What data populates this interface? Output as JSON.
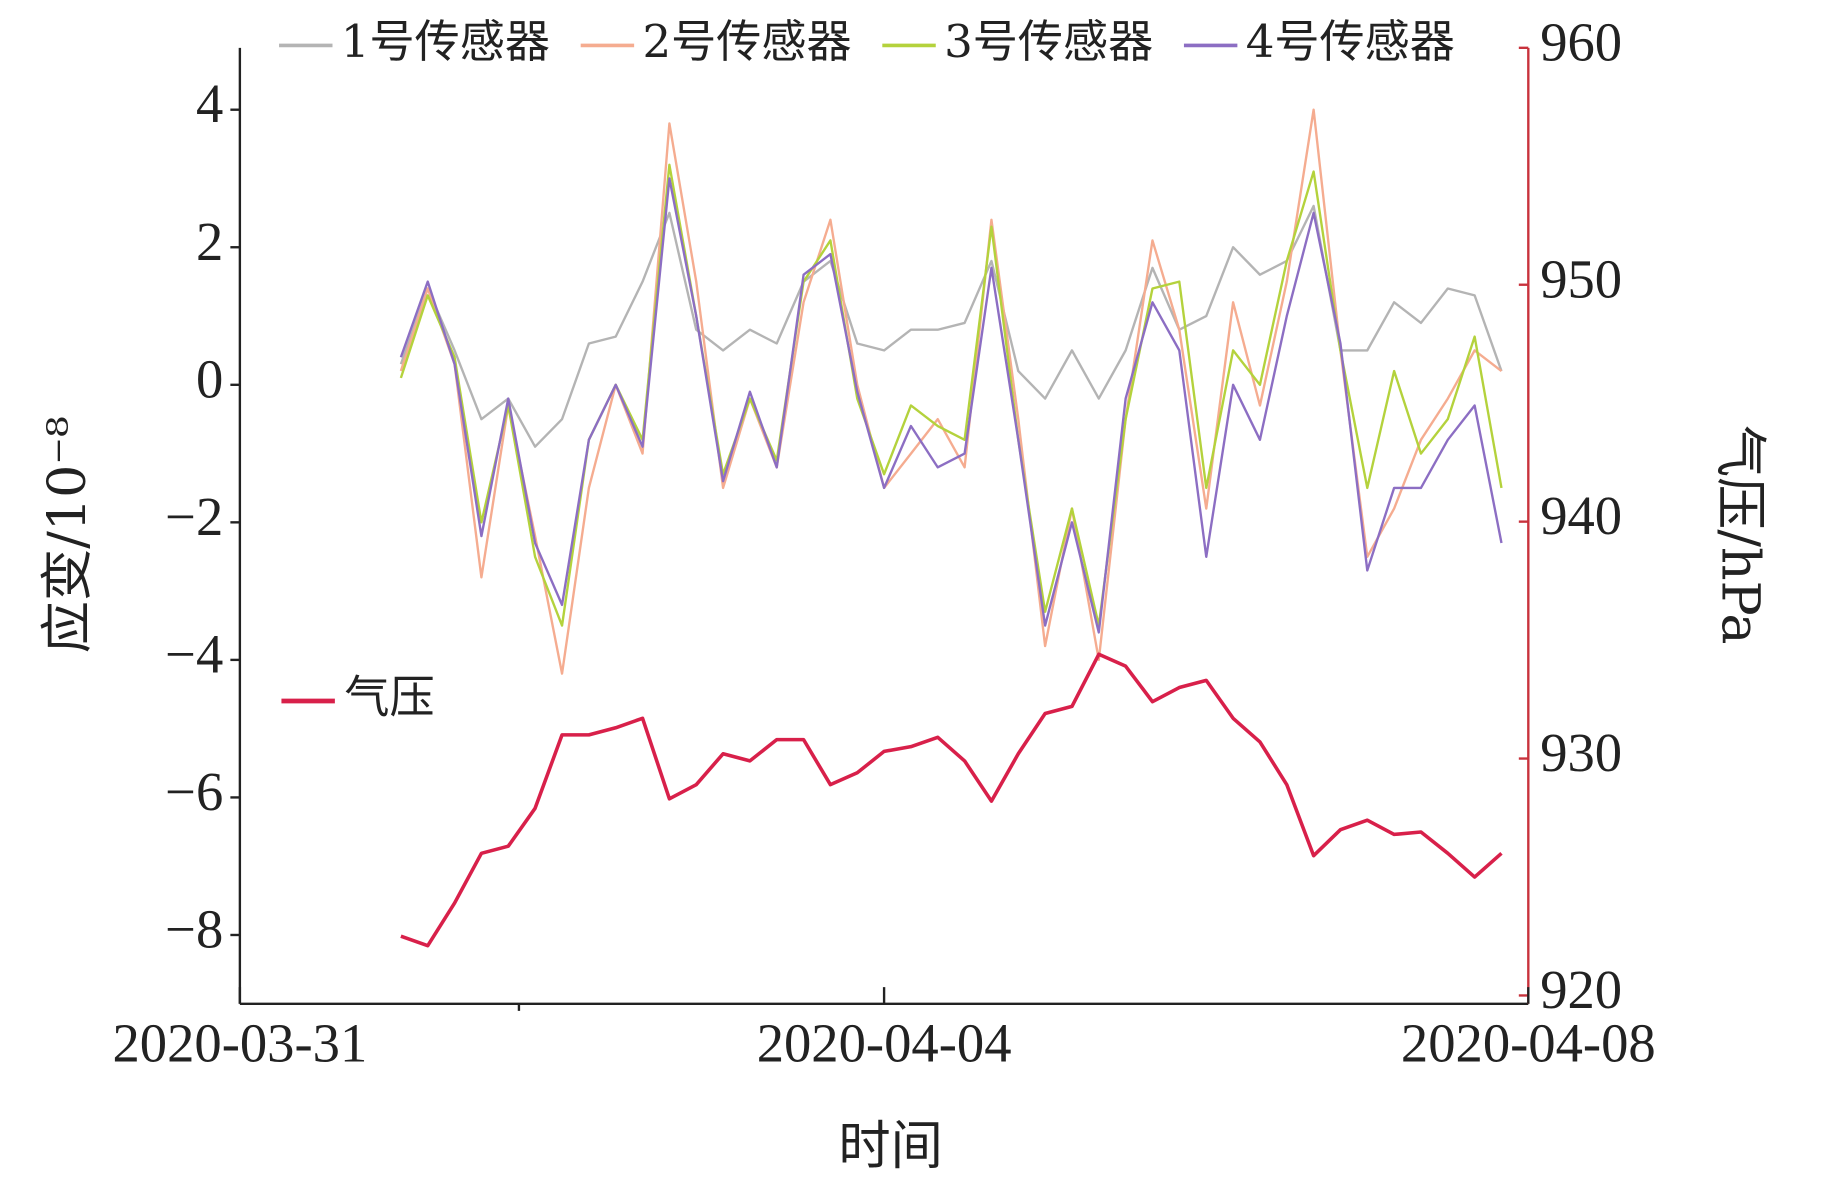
{
  "chart_data": {
    "type": "line",
    "x_label": "时间",
    "y_label": "应变/10⁻⁸",
    "y2_label": "气压/hPa",
    "x": [
      "2020-04-01T00:00",
      "2020-04-01T04:00",
      "2020-04-01T08:00",
      "2020-04-01T12:00",
      "2020-04-01T16:00",
      "2020-04-01T20:00",
      "2020-04-02T00:00",
      "2020-04-02T04:00",
      "2020-04-02T08:00",
      "2020-04-02T12:00",
      "2020-04-02T16:00",
      "2020-04-02T20:00",
      "2020-04-03T00:00",
      "2020-04-03T04:00",
      "2020-04-03T08:00",
      "2020-04-03T12:00",
      "2020-04-03T16:00",
      "2020-04-03T20:00",
      "2020-04-04T00:00",
      "2020-04-04T04:00",
      "2020-04-04T08:00",
      "2020-04-04T12:00",
      "2020-04-04T16:00",
      "2020-04-04T20:00",
      "2020-04-05T00:00",
      "2020-04-05T04:00",
      "2020-04-05T08:00",
      "2020-04-05T12:00",
      "2020-04-05T16:00",
      "2020-04-05T20:00",
      "2020-04-06T00:00",
      "2020-04-06T04:00",
      "2020-04-06T08:00",
      "2020-04-06T12:00",
      "2020-04-06T16:00",
      "2020-04-06T20:00",
      "2020-04-07T00:00",
      "2020-04-07T04:00",
      "2020-04-07T08:00",
      "2020-04-07T12:00",
      "2020-04-07T16:00",
      "2020-04-07T20:00"
    ],
    "xlim": [
      "2020-03-31",
      "2020-04-08"
    ],
    "xticks": [
      "2020-03-31",
      "2020-04-04",
      "2020-04-08"
    ],
    "ylim": [
      -9,
      4.9
    ],
    "yticks": [
      {
        "value": -8,
        "label": "−8"
      },
      {
        "value": -6,
        "label": "−6"
      },
      {
        "value": -4,
        "label": "−4"
      },
      {
        "value": -2,
        "label": "−2"
      },
      0,
      2,
      4
    ],
    "y2lim": [
      919.65,
      960
    ],
    "y2ticks": [
      920,
      930,
      940,
      950,
      960
    ],
    "y2_color": "#c8323c",
    "series": [
      {
        "name": "1号传感器",
        "color": "#b4b4b4",
        "values": [
          0.3,
          1.4,
          0.5,
          -0.5,
          -0.2,
          -0.9,
          -0.5,
          0.6,
          0.7,
          1.5,
          2.5,
          0.8,
          0.5,
          0.8,
          0.6,
          1.5,
          1.8,
          0.6,
          0.5,
          0.8,
          0.8,
          0.9,
          1.8,
          0.2,
          -0.2,
          0.5,
          -0.2,
          0.5,
          1.7,
          0.8,
          1.0,
          2.0,
          1.6,
          1.8,
          2.6,
          0.5,
          0.5,
          1.2,
          0.9,
          1.4,
          1.3,
          0.2
        ]
      },
      {
        "name": "2号传感器",
        "color": "#f5ac90",
        "values": [
          0.2,
          1.4,
          0.3,
          -2.8,
          -0.3,
          -2.2,
          -4.2,
          -1.5,
          0.0,
          -1.0,
          3.8,
          1.5,
          -1.5,
          -0.2,
          -1.2,
          1.2,
          2.4,
          0.0,
          -1.5,
          -1.0,
          -0.5,
          -1.2,
          2.4,
          -0.5,
          -3.8,
          -1.8,
          -4.0,
          -0.5,
          2.1,
          0.8,
          -1.8,
          1.2,
          -0.3,
          1.5,
          4.0,
          0.5,
          -2.5,
          -1.8,
          -0.8,
          -0.2,
          0.5,
          0.2
        ]
      },
      {
        "name": "3号传感器",
        "color": "#b4d23c",
        "values": [
          0.1,
          1.3,
          0.4,
          -2.0,
          -0.3,
          -2.5,
          -3.5,
          -0.8,
          0.0,
          -0.8,
          3.2,
          1.0,
          -1.3,
          -0.2,
          -1.1,
          1.5,
          2.1,
          -0.2,
          -1.3,
          -0.3,
          -0.6,
          -0.8,
          2.3,
          -0.8,
          -3.3,
          -1.8,
          -3.5,
          -0.5,
          1.4,
          1.5,
          -1.5,
          0.5,
          0.0,
          1.8,
          3.1,
          0.5,
          -1.5,
          0.2,
          -1.0,
          -0.5,
          0.7,
          -1.5
        ]
      },
      {
        "name": "4号传感器",
        "color": "#8c6ec3",
        "values": [
          0.4,
          1.5,
          0.3,
          -2.2,
          -0.2,
          -2.3,
          -3.2,
          -0.8,
          0.0,
          -0.9,
          3.0,
          1.0,
          -1.4,
          -0.1,
          -1.2,
          1.6,
          1.9,
          -0.1,
          -1.5,
          -0.6,
          -1.2,
          -1.0,
          1.7,
          -0.8,
          -3.5,
          -2.0,
          -3.6,
          -0.2,
          1.2,
          0.5,
          -2.5,
          0.0,
          -0.8,
          1.0,
          2.5,
          0.6,
          -2.7,
          -1.5,
          -1.5,
          -0.8,
          -0.3,
          -2.3
        ]
      },
      {
        "name": "气压",
        "color": "#d8204a",
        "axis": "y2",
        "values": [
          922.5,
          922.1,
          923.9,
          926.0,
          926.3,
          927.9,
          931.0,
          931.0,
          931.3,
          931.7,
          928.3,
          928.9,
          930.2,
          929.9,
          930.8,
          930.8,
          928.9,
          929.4,
          930.3,
          930.5,
          930.9,
          929.9,
          928.2,
          930.2,
          931.9,
          932.2,
          934.4,
          933.9,
          932.4,
          933.0,
          933.3,
          931.7,
          930.7,
          928.9,
          925.9,
          927.0,
          927.4,
          926.8,
          926.9,
          926.0,
          925.0,
          926.0
        ]
      }
    ]
  }
}
